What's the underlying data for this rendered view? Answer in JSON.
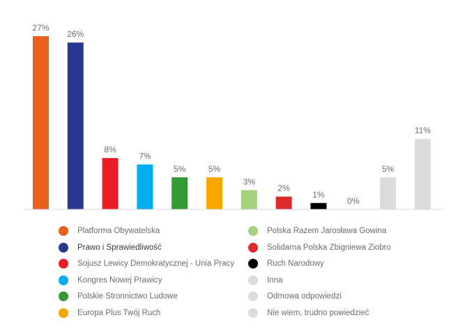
{
  "chart_data": {
    "type": "bar",
    "categories": [
      "Platforma Obywatelska",
      "Prawo i Sprawiedliwość",
      "Sojusz Lewicy Demokratycznej - Unia Pracy",
      "Kongres Nowej Prawicy",
      "Polskie Stronnictwo Ludowe",
      "Europa Plus Twój Ruch",
      "Polska Razem Jarosława Gowina",
      "Solidarna Polska Zbigniewa Ziobro",
      "Ruch Narodowy",
      "Inna",
      "Odmowa odpowiedzi",
      "Nie wiem, trudno powiedzieć"
    ],
    "values": [
      27,
      26,
      8,
      7,
      5,
      5,
      3,
      2,
      1,
      0,
      5,
      11
    ],
    "value_labels": [
      "27%",
      "26%",
      "8%",
      "7%",
      "5%",
      "5%",
      "3%",
      "2%",
      "1%",
      "0%",
      "5%",
      "11%"
    ],
    "colors": [
      "#e8601c",
      "#283891",
      "#ec1c24",
      "#00aeef",
      "#339933",
      "#f7a600",
      "#a3d17c",
      "#de2a2e",
      "#000000",
      "#dcdcdc",
      "#dcdcdc",
      "#dcdcdc"
    ],
    "ylim": [
      0,
      27
    ],
    "grid": false,
    "legend_position": "bottom"
  }
}
